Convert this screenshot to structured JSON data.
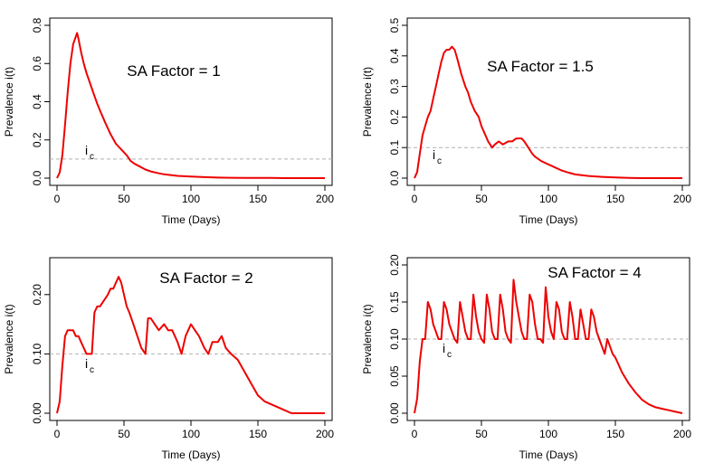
{
  "colors": {
    "series": "#ee0000",
    "threshold": "#b0b0b0",
    "axis": "#000000"
  },
  "chart_data": [
    {
      "type": "line",
      "annotation": "SA Factor = 1",
      "xlabel": "Time (Days)",
      "ylabel": "Prevalence i(t)",
      "xlim": [
        0,
        200
      ],
      "ylim": [
        0,
        0.8
      ],
      "xticks": [
        "0",
        "50",
        "100",
        "150",
        "200"
      ],
      "yticks": [
        "0.0",
        "0.2",
        "0.4",
        "0.6",
        "0.8"
      ],
      "threshold_label": "i",
      "threshold_sub": "c",
      "threshold": 0.1,
      "series": [
        {
          "name": "prevalence",
          "x": [
            0,
            2,
            4,
            6,
            8,
            10,
            12,
            14,
            15,
            16,
            18,
            20,
            22,
            25,
            28,
            30,
            33,
            36,
            40,
            44,
            48,
            52,
            55,
            58,
            62,
            66,
            70,
            75,
            80,
            90,
            100,
            110,
            120,
            130,
            140,
            150,
            160,
            170,
            180,
            190,
            200
          ],
          "y": [
            0.0,
            0.03,
            0.12,
            0.28,
            0.45,
            0.6,
            0.7,
            0.74,
            0.76,
            0.73,
            0.66,
            0.6,
            0.55,
            0.49,
            0.43,
            0.39,
            0.34,
            0.29,
            0.23,
            0.18,
            0.15,
            0.12,
            0.09,
            0.075,
            0.06,
            0.045,
            0.035,
            0.027,
            0.02,
            0.012,
            0.008,
            0.005,
            0.003,
            0.002,
            0.001,
            0.001,
            0.001,
            0.0,
            0.0,
            0.0,
            0.0
          ]
        }
      ]
    },
    {
      "type": "line",
      "annotation": "SA Factor = 1.5",
      "xlabel": "Time (Days)",
      "ylabel": "Prevalence i(t)",
      "xlim": [
        0,
        200
      ],
      "ylim": [
        0,
        0.5
      ],
      "xticks": [
        "0",
        "50",
        "100",
        "150",
        "200"
      ],
      "yticks": [
        "0.0",
        "0.1",
        "0.2",
        "0.3",
        "0.4",
        "0.5"
      ],
      "threshold_label": "i",
      "threshold_sub": "c",
      "threshold": 0.1,
      "series": [
        {
          "name": "prevalence",
          "x": [
            0,
            2,
            4,
            6,
            8,
            10,
            12,
            14,
            16,
            18,
            20,
            22,
            24,
            26,
            28,
            30,
            32,
            35,
            38,
            40,
            42,
            45,
            48,
            50,
            52,
            55,
            58,
            60,
            63,
            66,
            70,
            73,
            76,
            80,
            82,
            85,
            88,
            90,
            95,
            100,
            105,
            110,
            115,
            120,
            130,
            140,
            150,
            160,
            170,
            180,
            190,
            200
          ],
          "y": [
            0.0,
            0.02,
            0.08,
            0.14,
            0.17,
            0.2,
            0.22,
            0.26,
            0.3,
            0.34,
            0.38,
            0.41,
            0.42,
            0.42,
            0.43,
            0.42,
            0.39,
            0.34,
            0.3,
            0.28,
            0.25,
            0.22,
            0.2,
            0.17,
            0.15,
            0.12,
            0.1,
            0.11,
            0.12,
            0.11,
            0.12,
            0.12,
            0.13,
            0.13,
            0.12,
            0.1,
            0.08,
            0.07,
            0.055,
            0.045,
            0.035,
            0.025,
            0.018,
            0.012,
            0.007,
            0.004,
            0.002,
            0.001,
            0.0,
            0.0,
            0.0,
            0.0
          ]
        }
      ]
    },
    {
      "type": "line",
      "annotation": "SA Factor  = 2",
      "xlabel": "Time (Days)",
      "ylabel": "Prevalence i(t)",
      "xlim": [
        0,
        200
      ],
      "ylim": [
        0,
        0.25
      ],
      "xticks": [
        "0",
        "50",
        "100",
        "150",
        "200"
      ],
      "yticks": [
        "0.00",
        "0.10",
        "0.20"
      ],
      "ytick_values": [
        0,
        0.1,
        0.2
      ],
      "threshold_label": "i",
      "threshold_sub": "c",
      "threshold": 0.1,
      "series": [
        {
          "name": "prevalence",
          "x": [
            0,
            2,
            4,
            6,
            8,
            10,
            12,
            14,
            16,
            18,
            20,
            22,
            24,
            26,
            28,
            30,
            32,
            35,
            38,
            40,
            42,
            44,
            46,
            48,
            50,
            52,
            54,
            57,
            60,
            63,
            66,
            68,
            70,
            73,
            76,
            80,
            83,
            86,
            90,
            93,
            96,
            98,
            100,
            103,
            106,
            110,
            113,
            116,
            120,
            123,
            126,
            130,
            135,
            140,
            145,
            150,
            155,
            160,
            165,
            170,
            175,
            180,
            185,
            190,
            195,
            200
          ],
          "y": [
            0.0,
            0.02,
            0.08,
            0.13,
            0.14,
            0.14,
            0.14,
            0.13,
            0.13,
            0.12,
            0.11,
            0.1,
            0.1,
            0.1,
            0.17,
            0.18,
            0.18,
            0.19,
            0.2,
            0.21,
            0.21,
            0.22,
            0.23,
            0.22,
            0.2,
            0.18,
            0.17,
            0.15,
            0.13,
            0.11,
            0.1,
            0.16,
            0.16,
            0.15,
            0.14,
            0.15,
            0.14,
            0.14,
            0.12,
            0.1,
            0.13,
            0.14,
            0.15,
            0.14,
            0.13,
            0.11,
            0.1,
            0.12,
            0.12,
            0.13,
            0.11,
            0.1,
            0.09,
            0.07,
            0.05,
            0.03,
            0.02,
            0.015,
            0.01,
            0.005,
            0.0,
            0.0,
            0.0,
            0.0,
            0.0,
            0.0
          ]
        }
      ]
    },
    {
      "type": "line",
      "annotation": "SA Factor = 4",
      "xlabel": "Time (Days)",
      "ylabel": "Prevalence i(t)",
      "xlim": [
        0,
        200
      ],
      "ylim": [
        0,
        0.2
      ],
      "xticks": [
        "0",
        "50",
        "100",
        "150",
        "200"
      ],
      "yticks": [
        "0.00",
        "0.05",
        "0.10",
        "0.15",
        "0.20"
      ],
      "threshold_label": "i",
      "threshold_sub": "c",
      "threshold": 0.1,
      "series": [
        {
          "name": "prevalence",
          "x": [
            0,
            2,
            4,
            6,
            8,
            10,
            12,
            14,
            16,
            18,
            20,
            22,
            24,
            26,
            28,
            30,
            32,
            34,
            36,
            38,
            40,
            42,
            44,
            46,
            48,
            50,
            52,
            54,
            56,
            58,
            60,
            62,
            64,
            66,
            68,
            70,
            72,
            74,
            76,
            78,
            80,
            82,
            84,
            86,
            88,
            90,
            92,
            94,
            96,
            98,
            100,
            102,
            104,
            106,
            108,
            110,
            112,
            114,
            116,
            118,
            120,
            122,
            124,
            126,
            128,
            130,
            132,
            134,
            136,
            138,
            140,
            142,
            144,
            146,
            148,
            150,
            155,
            160,
            165,
            170,
            175,
            180,
            185,
            190,
            195,
            200
          ],
          "y": [
            0.0,
            0.02,
            0.07,
            0.1,
            0.1,
            0.15,
            0.14,
            0.12,
            0.11,
            0.1,
            0.1,
            0.15,
            0.14,
            0.12,
            0.11,
            0.1,
            0.095,
            0.15,
            0.13,
            0.11,
            0.1,
            0.1,
            0.16,
            0.13,
            0.11,
            0.1,
            0.095,
            0.16,
            0.14,
            0.11,
            0.1,
            0.1,
            0.16,
            0.14,
            0.11,
            0.1,
            0.095,
            0.18,
            0.15,
            0.13,
            0.11,
            0.1,
            0.1,
            0.16,
            0.15,
            0.12,
            0.1,
            0.1,
            0.095,
            0.17,
            0.13,
            0.11,
            0.1,
            0.15,
            0.14,
            0.11,
            0.1,
            0.1,
            0.15,
            0.13,
            0.1,
            0.1,
            0.14,
            0.12,
            0.1,
            0.1,
            0.14,
            0.13,
            0.11,
            0.1,
            0.09,
            0.08,
            0.1,
            0.09,
            0.08,
            0.075,
            0.055,
            0.04,
            0.028,
            0.018,
            0.012,
            0.008,
            0.006,
            0.004,
            0.002,
            0.0
          ]
        }
      ]
    }
  ]
}
